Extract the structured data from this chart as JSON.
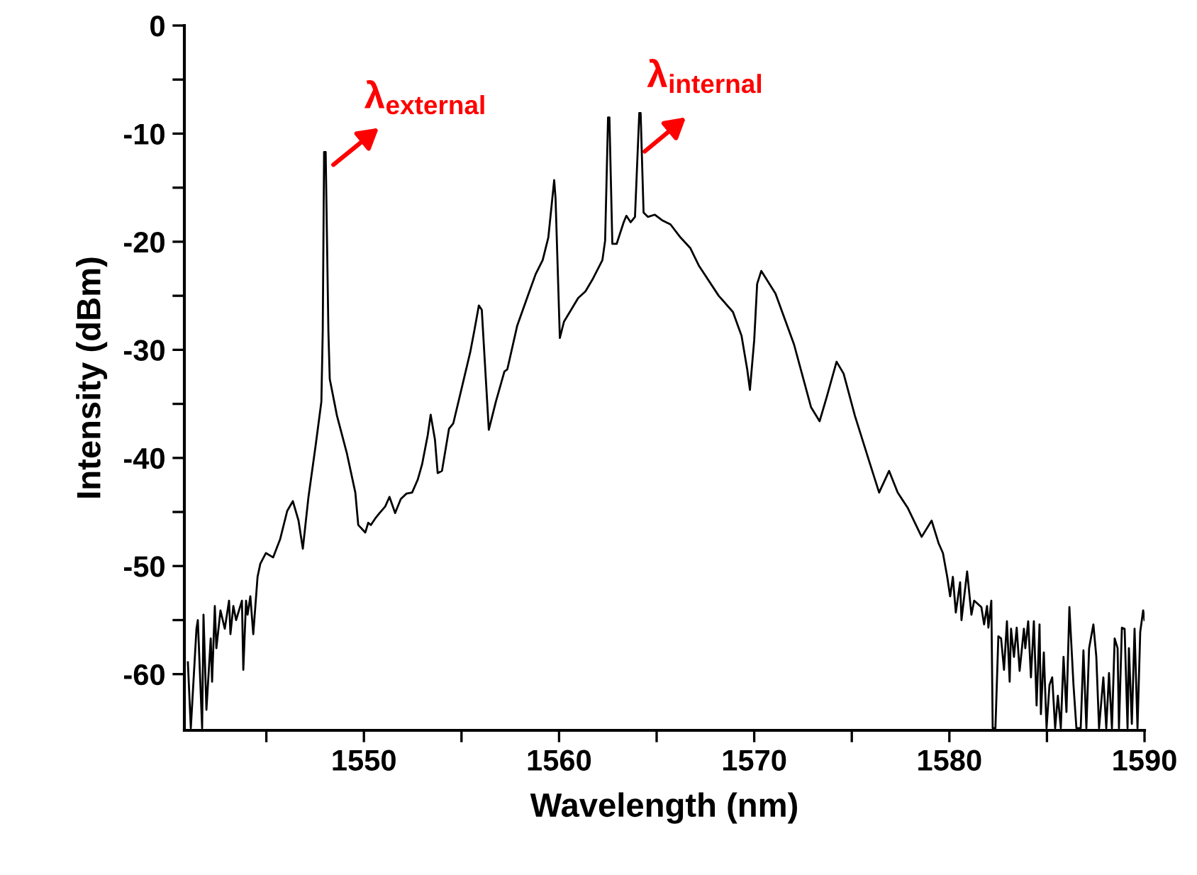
{
  "chart_data": {
    "type": "line",
    "xlabel": "Wavelength (nm)",
    "ylabel": "Intensity (dBm)",
    "xlim": [
      1540.8,
      1590
    ],
    "ylim": [
      -65.2,
      0
    ],
    "xticks": [
      {
        "value": 1545,
        "label": null
      },
      1550,
      {
        "value": 1555,
        "label": null
      },
      1560,
      {
        "value": 1565,
        "label": null
      },
      1570,
      {
        "value": 1575,
        "label": null
      },
      1580,
      {
        "value": 1585,
        "label": null
      },
      1590
    ],
    "yticks": [
      -60,
      {
        "value": -55,
        "label": null
      },
      -50,
      {
        "value": -45,
        "label": null
      },
      -40,
      {
        "value": -35,
        "label": null
      },
      -30,
      {
        "value": -25,
        "label": null
      },
      -20,
      {
        "value": -15,
        "label": null
      },
      -10,
      {
        "value": -5,
        "label": null
      },
      0
    ],
    "grid": false,
    "legend": false,
    "marker": "none",
    "line_style": "solid",
    "annotations": [
      {
        "text": "λ$_{external}$",
        "x": 1548.0,
        "y": -11.7
      },
      {
        "text": "λ$_{internal}$",
        "x": 1564.1,
        "y": -8.1
      }
    ],
    "series": [
      {
        "color": "#000000",
        "x": [
          1540.98,
          1541.13,
          1541.42,
          1541.49,
          1541.71,
          1541.78,
          1541.93,
          1542.15,
          1542.22,
          1542.36,
          1542.44,
          1542.65,
          1542.87,
          1543.09,
          1543.16,
          1543.31,
          1543.45,
          1543.75,
          1543.82,
          1543.96,
          1544.04,
          1544.18,
          1544.33,
          1544.55,
          1544.69,
          1544.98,
          1545.35,
          1545.71,
          1546.07,
          1546.36,
          1546.65,
          1546.87,
          1547.16,
          1547.53,
          1547.82,
          1547.89,
          1547.96,
          1548.04,
          1548.18,
          1548.25,
          1548.62,
          1549.13,
          1549.56,
          1549.71,
          1550.07,
          1550.22,
          1550.36,
          1550.58,
          1550.8,
          1551.09,
          1551.31,
          1551.6,
          1551.89,
          1552.18,
          1552.47,
          1552.76,
          1552.98,
          1553.27,
          1553.42,
          1553.64,
          1553.78,
          1554.0,
          1554.36,
          1554.58,
          1554.95,
          1555.45,
          1555.67,
          1555.89,
          1556.04,
          1556.4,
          1556.76,
          1557.2,
          1557.35,
          1557.85,
          1558.36,
          1558.8,
          1559.16,
          1559.45,
          1559.75,
          1559.82,
          1560.04,
          1560.25,
          1560.55,
          1560.98,
          1561.35,
          1561.71,
          1562.22,
          1562.36,
          1562.51,
          1562.58,
          1562.73,
          1562.95,
          1563.31,
          1563.45,
          1563.67,
          1563.89,
          1564.11,
          1564.18,
          1564.33,
          1564.55,
          1564.91,
          1565.27,
          1565.71,
          1566.22,
          1566.73,
          1567.16,
          1568.18,
          1568.91,
          1569.35,
          1569.64,
          1569.78,
          1570.0,
          1570.15,
          1570.36,
          1571.09,
          1572.04,
          1572.91,
          1573.35,
          1573.71,
          1574.22,
          1574.58,
          1575.16,
          1575.89,
          1576.4,
          1576.91,
          1577.35,
          1577.86,
          1578.58,
          1579.09,
          1579.45,
          1579.67,
          1579.89,
          1580.04,
          1580.18,
          1580.33,
          1580.55,
          1580.62,
          1580.91,
          1581.13,
          1581.27,
          1581.64,
          1581.78,
          1581.93,
          1582.0,
          1582.15,
          1582.22,
          1582.36,
          1582.51,
          1582.65,
          1582.8,
          1582.95,
          1583.09,
          1583.16,
          1583.31,
          1583.45,
          1583.6,
          1583.82,
          1583.89,
          1584.04,
          1584.18,
          1584.33,
          1584.47,
          1584.62,
          1584.69,
          1584.84,
          1584.98,
          1585.13,
          1585.27,
          1585.42,
          1585.56,
          1585.71,
          1585.85,
          1586.0,
          1586.15,
          1586.36,
          1586.51,
          1586.73,
          1586.87,
          1587.02,
          1587.16,
          1587.38,
          1587.53,
          1587.67,
          1587.89,
          1588.04,
          1588.18,
          1588.33,
          1588.47,
          1588.62,
          1588.69,
          1588.84,
          1588.98,
          1589.13,
          1589.2,
          1589.35,
          1589.49,
          1589.64,
          1589.78,
          1589.93,
          1590.0
        ],
        "values": [
          -58.9,
          -65,
          -55.8,
          -55,
          -65,
          -54.5,
          -63.3,
          -56.7,
          -60.7,
          -53.7,
          -57.6,
          -54.1,
          -55.8,
          -53.2,
          -56.3,
          -53.7,
          -55,
          -53.2,
          -59.6,
          -53.2,
          -54.5,
          -52.8,
          -56.3,
          -51,
          -49.8,
          -48.8,
          -49.2,
          -47.5,
          -44.9,
          -44,
          -45.8,
          -48.4,
          -43.6,
          -38.8,
          -34.8,
          -28.3,
          -11.7,
          -11.7,
          -28.3,
          -32.7,
          -36.1,
          -39.6,
          -43.2,
          -46.2,
          -46.9,
          -46,
          -46.2,
          -45.6,
          -45.1,
          -44.5,
          -43.6,
          -45.1,
          -43.8,
          -43.3,
          -43.2,
          -42,
          -40.6,
          -37.9,
          -36,
          -38.3,
          -41.4,
          -41.2,
          -37.3,
          -36.8,
          -34,
          -30.2,
          -28.1,
          -25.9,
          -26.3,
          -37.4,
          -34.8,
          -32,
          -31.8,
          -27.8,
          -25.2,
          -23,
          -21.7,
          -19.6,
          -14.3,
          -16,
          -28.9,
          -27.4,
          -26.5,
          -25.2,
          -24.6,
          -23.5,
          -21.7,
          -19.9,
          -8.5,
          -8.5,
          -20.2,
          -20.2,
          -18.2,
          -17.6,
          -18.2,
          -17.7,
          -8.1,
          -8.1,
          -17.3,
          -17.7,
          -17.5,
          -18,
          -18.4,
          -19.6,
          -20.6,
          -22.2,
          -25,
          -26.5,
          -28.7,
          -31.8,
          -33.7,
          -29.1,
          -23.9,
          -22.7,
          -24.8,
          -29.5,
          -35.3,
          -36.6,
          -34.4,
          -31.1,
          -32.2,
          -36.1,
          -40.3,
          -43.2,
          -41.2,
          -43.2,
          -44.6,
          -47.3,
          -45.8,
          -47.9,
          -48.8,
          -51,
          -52.8,
          -51,
          -54.3,
          -51.5,
          -55,
          -50.5,
          -54.5,
          -53.2,
          -53.8,
          -55.4,
          -53.7,
          -55.7,
          -53.2,
          -65,
          -65,
          -56.5,
          -56.7,
          -59.6,
          -55.1,
          -60.7,
          -55.8,
          -58.4,
          -55.7,
          -59.7,
          -55.8,
          -57.6,
          -55.1,
          -60.3,
          -55.1,
          -62.9,
          -55.4,
          -63.7,
          -58,
          -65,
          -61,
          -60.3,
          -65,
          -62,
          -65,
          -58.4,
          -63.5,
          -53.8,
          -61,
          -65,
          -65,
          -57.8,
          -65,
          -57.6,
          -55.4,
          -58.4,
          -65,
          -60.3,
          -65,
          -59.9,
          -65,
          -56.7,
          -57.6,
          -65,
          -55.7,
          -55.8,
          -65,
          -57.6,
          -64.6,
          -55.8,
          -65,
          -56.1,
          -54.1,
          -55
        ]
      }
    ]
  }
}
